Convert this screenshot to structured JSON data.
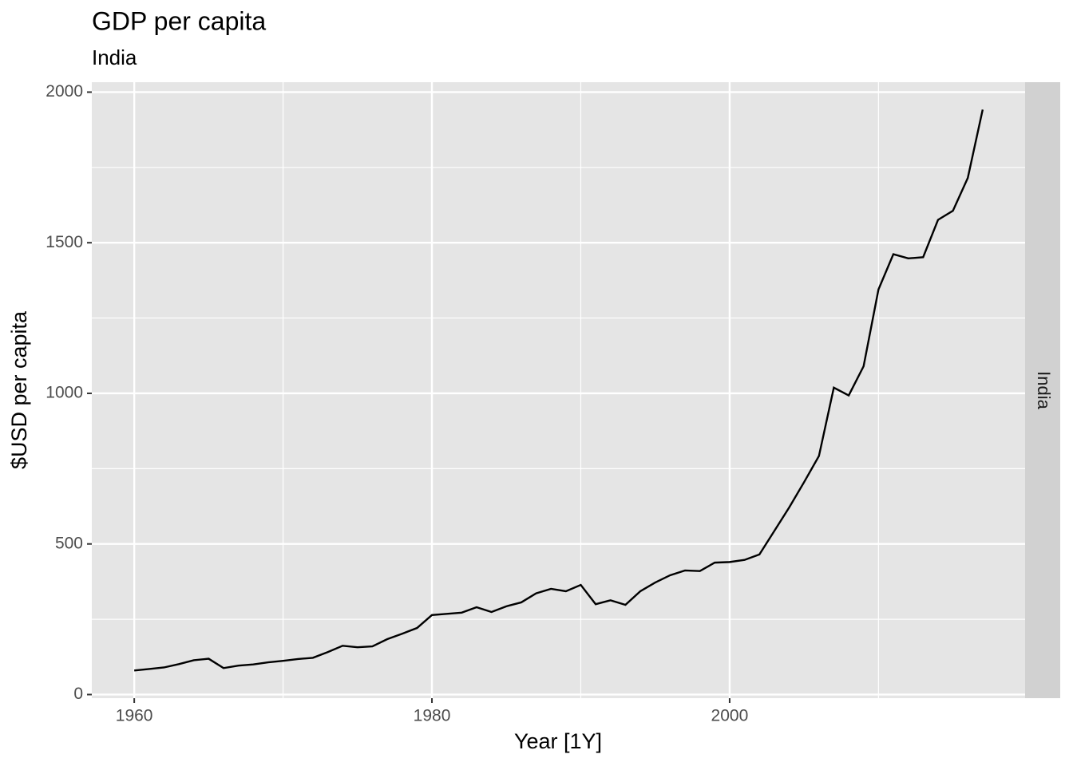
{
  "chart_data": {
    "type": "line",
    "title": "GDP per capita",
    "subtitle": "India",
    "x_label": "Year [1Y]",
    "y_label": "$USD per capita",
    "facet": "India",
    "x": [
      1960,
      1961,
      1962,
      1963,
      1964,
      1965,
      1966,
      1967,
      1968,
      1969,
      1970,
      1971,
      1972,
      1973,
      1974,
      1975,
      1976,
      1977,
      1978,
      1979,
      1980,
      1981,
      1982,
      1983,
      1984,
      1985,
      1986,
      1987,
      1988,
      1989,
      1990,
      1991,
      1992,
      1993,
      1994,
      1995,
      1996,
      1997,
      1998,
      1999,
      2000,
      2001,
      2002,
      2003,
      2004,
      2005,
      2006,
      2007,
      2008,
      2009,
      2010,
      2011,
      2012,
      2013,
      2014,
      2015,
      2016,
      2017
    ],
    "series": [
      {
        "name": "India",
        "color": "#000000",
        "values": [
          80,
          85,
          90,
          101,
          114,
          119,
          88,
          96,
          100,
          107,
          112,
          118,
          122,
          141,
          162,
          157,
          160,
          184,
          202,
          221,
          264,
          268,
          272,
          290,
          274,
          293,
          306,
          336,
          351,
          343,
          364,
          300,
          313,
          298,
          343,
          372,
          396,
          412,
          410,
          438,
          440,
          447,
          465,
          543,
          621,
          705,
          792,
          1019,
          993,
          1090,
          1345,
          1462,
          1448,
          1452,
          1576,
          1606,
          1715,
          1942
        ]
      }
    ],
    "xlim": [
      1957.15,
      2019.85
    ],
    "xticks": [
      1960,
      1980,
      2000
    ],
    "xminor": [
      1970,
      1990,
      2010
    ],
    "ylim": [
      -12,
      2033
    ],
    "yticks": [
      0,
      500,
      1000,
      1500,
      2000
    ],
    "yminor": [
      250,
      750,
      1250,
      1750
    ],
    "grid": true
  }
}
